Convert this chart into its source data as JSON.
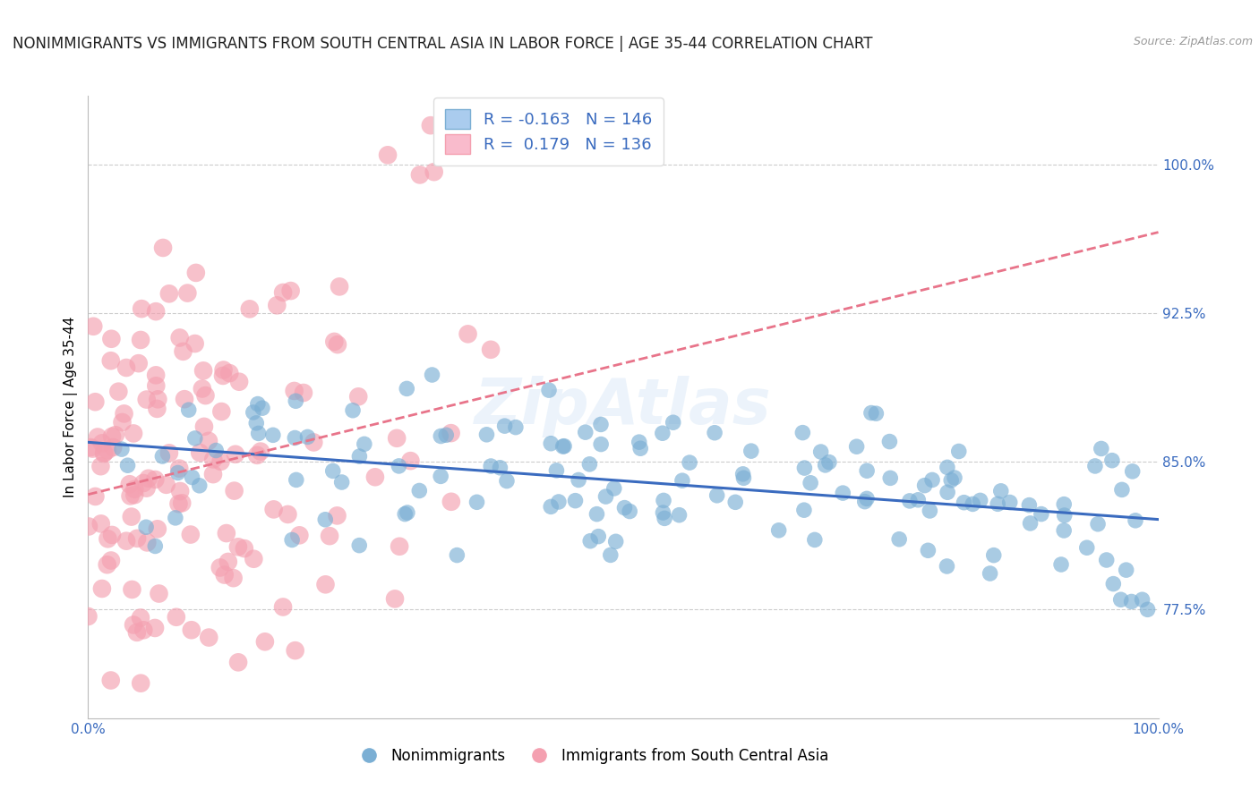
{
  "title": "NONIMMIGRANTS VS IMMIGRANTS FROM SOUTH CENTRAL ASIA IN LABOR FORCE | AGE 35-44 CORRELATION CHART",
  "source": "Source: ZipAtlas.com",
  "ylabel": "In Labor Force | Age 35-44",
  "xlim": [
    0.0,
    1.0
  ],
  "ylim": [
    0.72,
    1.035
  ],
  "yticks": [
    0.775,
    0.85,
    0.925,
    1.0
  ],
  "ytick_labels": [
    "77.5%",
    "85.0%",
    "92.5%",
    "100.0%"
  ],
  "blue_color": "#7BAFD4",
  "pink_color": "#F4A0B0",
  "trend_blue": "#3A6BBF",
  "trend_pink": "#E8748A",
  "R_blue": -0.163,
  "N_blue": 146,
  "R_pink": 0.179,
  "N_pink": 136,
  "legend_label_blue": "Nonimmigrants",
  "legend_label_pink": "Immigrants from South Central Asia",
  "watermark": "ZipAtlas",
  "title_fontsize": 12,
  "axis_label_fontsize": 11,
  "tick_fontsize": 11,
  "tick_color": "#3A6BBF",
  "grid_color": "#CCCCCC",
  "legend_text_color": "#3A6BBF"
}
